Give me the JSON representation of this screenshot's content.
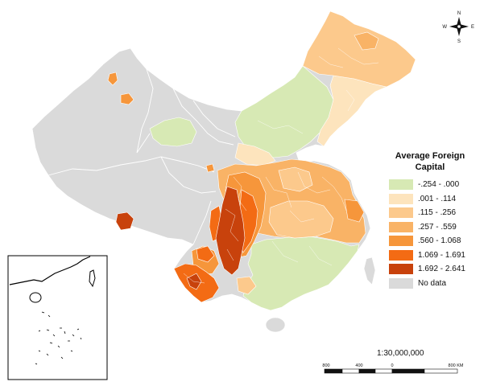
{
  "legend": {
    "title": "Average Foreign Capital",
    "classes": [
      {
        "label": "-.254 - .000",
        "color": "#d7e9b4"
      },
      {
        "label": ".001 - .114",
        "color": "#fde4bd"
      },
      {
        "label": ".115 - .256",
        "color": "#fcc98c"
      },
      {
        "label": ".257 - .559",
        "color": "#f9b366"
      },
      {
        "label": ".560 - 1.068",
        "color": "#f6963b"
      },
      {
        "label": "1.069 - 1.691",
        "color": "#f36b14"
      },
      {
        "label": "1.692 - 2.641",
        "color": "#c8420c"
      },
      {
        "label": "No data",
        "color": "#dadada"
      }
    ]
  },
  "scale": {
    "ratio": "1:30,000,000",
    "bar_labels": [
      "800",
      "400",
      "0",
      "800 KM"
    ]
  },
  "north_arrow": {
    "n": "N",
    "s": "S",
    "w": "W",
    "e": "E"
  }
}
